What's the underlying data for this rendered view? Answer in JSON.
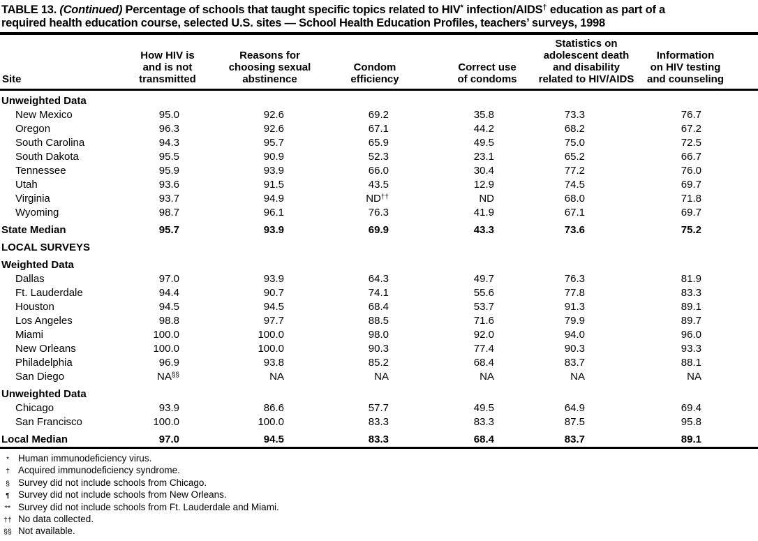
{
  "title": {
    "label": "TABLE 13.",
    "continued": "(Continued)",
    "segment1": "Percentage of schools that taught specific topics related to HIV",
    "sup1": "*",
    "segment2": "infection/AIDS",
    "sup2": "†",
    "segment3": "education as part of a",
    "line2": "required health education course, selected U.S. sites — School Health Education Profiles, teachers’ surveys, 1998"
  },
  "table": {
    "columns": [
      "Site",
      "How HIV is\nand is not\ntransmitted",
      "Reasons for\nchoosing sexual\nabstinence",
      "Condom\nefficiency",
      "Correct use\nof condoms",
      "Statistics on\nadolescent death\nand disability\nrelated to HIV/AIDS",
      "Information\non HIV testing\nand counseling"
    ],
    "rows": [
      {
        "type": "section",
        "label": "Unweighted Data"
      },
      {
        "type": "data",
        "label": "New Mexico",
        "values": [
          "95.0",
          "92.6",
          "69.2",
          "35.8",
          "73.3",
          "76.7"
        ]
      },
      {
        "type": "data",
        "label": "Oregon",
        "values": [
          "96.3",
          "92.6",
          "67.1",
          "44.2",
          "68.2",
          "67.2"
        ]
      },
      {
        "type": "data",
        "label": "South Carolina",
        "values": [
          "94.3",
          "95.7",
          "65.9",
          "49.5",
          "75.0",
          "72.5"
        ]
      },
      {
        "type": "data",
        "label": "South Dakota",
        "values": [
          "95.5",
          "90.9",
          "52.3",
          "23.1",
          "65.2",
          "66.7"
        ]
      },
      {
        "type": "data",
        "label": "Tennessee",
        "values": [
          "95.9",
          "93.9",
          "66.0",
          "30.4",
          "77.2",
          "76.0"
        ]
      },
      {
        "type": "data",
        "label": "Utah",
        "values": [
          "93.6",
          "91.5",
          "43.5",
          "12.9",
          "74.5",
          "69.7"
        ]
      },
      {
        "type": "data",
        "label": "Virginia",
        "values": [
          "93.7",
          "94.9",
          {
            "v": "ND",
            "sup": "††"
          },
          "ND",
          "68.0",
          "71.8"
        ]
      },
      {
        "type": "data",
        "label": "Wyoming",
        "values": [
          "98.7",
          "96.1",
          "76.3",
          "41.9",
          "67.1",
          "69.7"
        ]
      },
      {
        "type": "median",
        "label": "State Median",
        "values": [
          "95.7",
          "93.9",
          "69.9",
          "43.3",
          "73.6",
          "75.2"
        ]
      },
      {
        "type": "section-caps",
        "label": "LOCAL SURVEYS"
      },
      {
        "type": "section",
        "label": "Weighted Data"
      },
      {
        "type": "data",
        "label": "Dallas",
        "values": [
          "97.0",
          "93.9",
          "64.3",
          "49.7",
          "76.3",
          "81.9"
        ]
      },
      {
        "type": "data",
        "label": "Ft. Lauderdale",
        "values": [
          "94.4",
          "90.7",
          "74.1",
          "55.6",
          "77.8",
          "83.3"
        ]
      },
      {
        "type": "data",
        "label": "Houston",
        "values": [
          "94.5",
          "94.5",
          "68.4",
          "53.7",
          "91.3",
          "89.1"
        ]
      },
      {
        "type": "data",
        "label": "Los Angeles",
        "values": [
          "98.8",
          "97.7",
          "88.5",
          "71.6",
          "79.9",
          "89.7"
        ]
      },
      {
        "type": "data",
        "label": "Miami",
        "values": [
          "100.0",
          "100.0",
          "98.0",
          "92.0",
          "94.0",
          "96.0"
        ]
      },
      {
        "type": "data",
        "label": "New Orleans",
        "values": [
          "100.0",
          "100.0",
          "90.3",
          "77.4",
          "90.3",
          "93.3"
        ]
      },
      {
        "type": "data",
        "label": "Philadelphia",
        "values": [
          "96.9",
          "93.8",
          "85.2",
          "68.4",
          "83.7",
          "88.1"
        ]
      },
      {
        "type": "data",
        "label": "San Diego",
        "values": [
          {
            "v": "NA",
            "sup": "§§"
          },
          "NA",
          "NA",
          "NA",
          "NA",
          "NA"
        ]
      },
      {
        "type": "section",
        "label": "Unweighted Data"
      },
      {
        "type": "data",
        "label": "Chicago",
        "values": [
          "93.9",
          "86.6",
          "57.7",
          "49.5",
          "64.9",
          "69.4"
        ]
      },
      {
        "type": "data",
        "label": "San Francisco",
        "values": [
          "100.0",
          "100.0",
          "83.3",
          "83.3",
          "87.5",
          "95.8"
        ]
      },
      {
        "type": "median",
        "label": "Local Median",
        "values": [
          "97.0",
          "94.5",
          "83.3",
          "68.4",
          "83.7",
          "89.1"
        ]
      }
    ]
  },
  "footnotes": [
    {
      "marker": "*",
      "text": "Human immunodeficiency virus."
    },
    {
      "marker": "†",
      "text": "Acquired immunodeficiency syndrome."
    },
    {
      "marker": "§",
      "text": "Survey did not include schools from Chicago."
    },
    {
      "marker": "¶",
      "text": "Survey did not include schools from New Orleans."
    },
    {
      "marker": "**",
      "text": "Survey did not include schools from Ft. Lauderdale and Miami."
    },
    {
      "marker": "††",
      "text": "No data collected."
    },
    {
      "marker": "§§",
      "text": "Not available."
    }
  ]
}
